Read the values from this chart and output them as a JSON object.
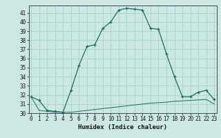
{
  "xlabel": "Humidex (Indice chaleur)",
  "x": [
    0,
    1,
    2,
    3,
    4,
    5,
    6,
    7,
    8,
    9,
    10,
    11,
    12,
    13,
    14,
    15,
    16,
    17,
    18,
    19,
    20,
    21,
    22,
    23
  ],
  "y_humidex": [
    31.8,
    31.4,
    30.3,
    30.2,
    30.1,
    32.5,
    35.2,
    37.3,
    37.5,
    39.3,
    40.0,
    41.3,
    41.5,
    41.4,
    41.3,
    39.3,
    39.2,
    36.5,
    34.0,
    31.8,
    31.8,
    32.3,
    32.5,
    31.5
  ],
  "y_min": [
    31.8,
    30.3,
    30.2,
    30.1,
    30.1,
    30.1,
    30.2,
    30.3,
    30.4,
    30.5,
    30.6,
    30.7,
    30.8,
    30.9,
    31.0,
    31.1,
    31.15,
    31.2,
    31.3,
    31.35,
    31.4,
    31.45,
    31.5,
    31.0
  ],
  "line_color": "#1a6b5c",
  "bg_color": "#cce8e4",
  "grid_color": "#a0ccc8",
  "ylim": [
    30.0,
    41.8
  ],
  "xlim": [
    -0.3,
    23.3
  ],
  "yticks": [
    30,
    31,
    32,
    33,
    34,
    35,
    36,
    37,
    38,
    39,
    40,
    41
  ],
  "xticks": [
    0,
    1,
    2,
    3,
    4,
    5,
    6,
    7,
    8,
    9,
    10,
    11,
    12,
    13,
    14,
    15,
    16,
    17,
    18,
    19,
    20,
    21,
    22,
    23
  ],
  "tick_fontsize": 5.5,
  "xlabel_fontsize": 6.5
}
